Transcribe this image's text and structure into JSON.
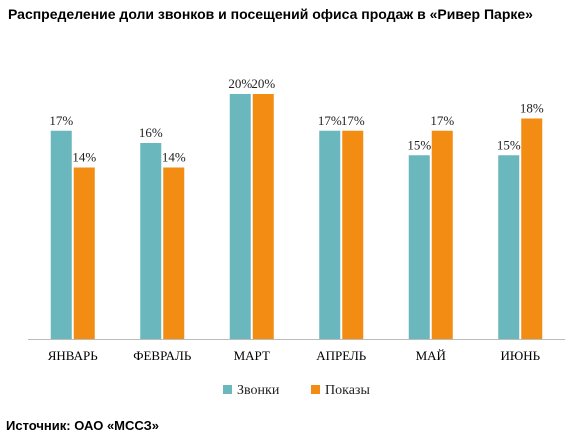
{
  "title": "Распределение доли звонков и посещений офиса продаж в «Ривер Парке»",
  "source": "Источник: ОАО «МССЗ»",
  "chart_data": {
    "type": "bar",
    "categories": [
      "ЯНВАРЬ",
      "ФЕВРАЛЬ",
      "МАРТ",
      "АПРЕЛЬ",
      "МАЙ",
      "ИЮНЬ"
    ],
    "series": [
      {
        "name": "Звонки",
        "color": "#6ab7bd",
        "values": [
          17,
          16,
          20,
          17,
          15,
          15
        ],
        "labels": [
          "17%",
          "16%",
          "20%",
          "17%",
          "15%",
          "15%"
        ]
      },
      {
        "name": "Показы",
        "color": "#f28c12",
        "values": [
          14,
          14,
          20,
          17,
          17,
          18
        ],
        "labels": [
          "14%",
          "14%",
          "20%",
          "17%",
          "17%",
          "18%"
        ]
      }
    ],
    "ylim": [
      0,
      24
    ],
    "value_unit": "%",
    "legend_position": "bottom",
    "grid": false
  }
}
